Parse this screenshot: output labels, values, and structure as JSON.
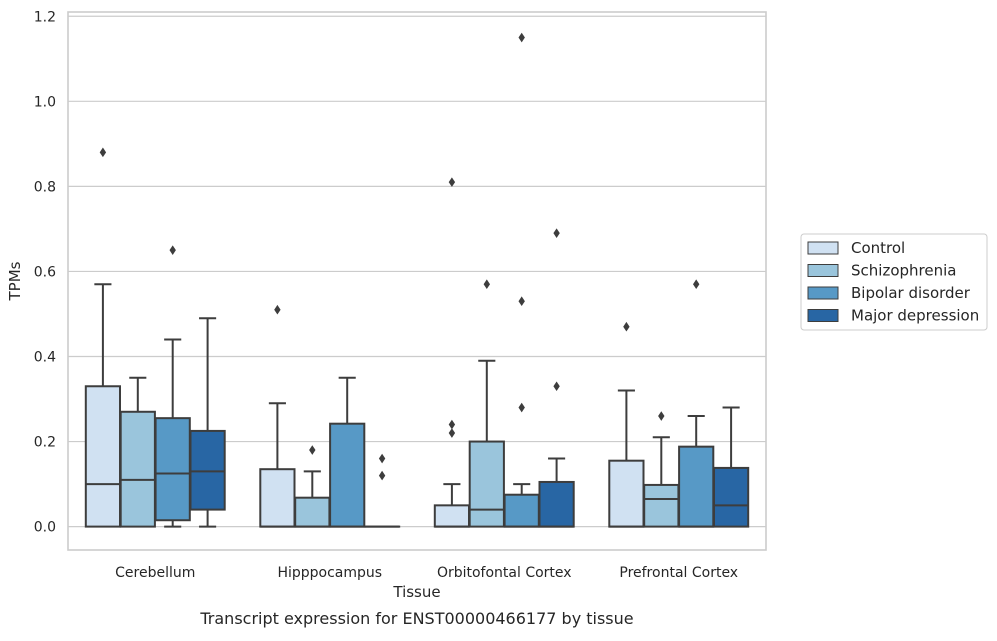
{
  "chart_data": {
    "type": "box",
    "xlabel": "Tissue",
    "ylabel": "TPMs",
    "caption": "Transcript expression for ENST00000466177 by tissue",
    "ylim": [
      -0.055,
      1.21
    ],
    "yticks": [
      0.0,
      0.2,
      0.4,
      0.6,
      0.8,
      1.0,
      1.2
    ],
    "ytick_labels": [
      "0.0",
      "0.2",
      "0.4",
      "0.6",
      "0.8",
      "1.0",
      "1.2"
    ],
    "grid": "horizontal",
    "legend_position": "right",
    "categories": [
      "Cerebellum",
      "Hipppocampus",
      "Orbitofontal Cortex",
      "Prefrontal Cortex"
    ],
    "series": [
      {
        "name": "Control",
        "color": "#d0e1f2",
        "boxes": [
          {
            "whislo": 0.0,
            "q1": 0.0,
            "med": 0.1,
            "q3": 0.33,
            "whishi": 0.57,
            "fliers": [
              0.88
            ]
          },
          {
            "whislo": 0.0,
            "q1": 0.0,
            "med": 0.0,
            "q3": 0.135,
            "whishi": 0.29,
            "fliers": [
              0.51
            ]
          },
          {
            "whislo": 0.0,
            "q1": 0.0,
            "med": 0.0,
            "q3": 0.05,
            "whishi": 0.1,
            "fliers": [
              0.22,
              0.24,
              0.81
            ]
          },
          {
            "whislo": 0.0,
            "q1": 0.0,
            "med": 0.0,
            "q3": 0.155,
            "whishi": 0.32,
            "fliers": [
              0.47
            ]
          }
        ]
      },
      {
        "name": "Schizophrenia",
        "color": "#9ac5dc",
        "boxes": [
          {
            "whislo": 0.0,
            "q1": 0.0,
            "med": 0.11,
            "q3": 0.27,
            "whishi": 0.35,
            "fliers": []
          },
          {
            "whislo": 0.0,
            "q1": 0.0,
            "med": 0.0,
            "q3": 0.068,
            "whishi": 0.13,
            "fliers": [
              0.18
            ]
          },
          {
            "whislo": 0.0,
            "q1": 0.0,
            "med": 0.04,
            "q3": 0.2,
            "whishi": 0.39,
            "fliers": [
              0.57
            ]
          },
          {
            "whislo": 0.0,
            "q1": 0.0,
            "med": 0.065,
            "q3": 0.098,
            "whishi": 0.21,
            "fliers": [
              0.26
            ]
          }
        ]
      },
      {
        "name": "Bipolar disorder",
        "color": "#5799c6",
        "boxes": [
          {
            "whislo": 0.0,
            "q1": 0.015,
            "med": 0.125,
            "q3": 0.255,
            "whishi": 0.44,
            "fliers": [
              0.65
            ]
          },
          {
            "whislo": 0.0,
            "q1": 0.0,
            "med": 0.0,
            "q3": 0.242,
            "whishi": 0.35,
            "fliers": []
          },
          {
            "whislo": 0.0,
            "q1": 0.0,
            "med": 0.0,
            "q3": 0.075,
            "whishi": 0.1,
            "fliers": [
              0.28,
              0.53,
              1.15
            ]
          },
          {
            "whislo": 0.0,
            "q1": 0.0,
            "med": 0.0,
            "q3": 0.188,
            "whishi": 0.26,
            "fliers": [
              0.57
            ]
          }
        ]
      },
      {
        "name": "Major depression",
        "color": "#2866a4",
        "boxes": [
          {
            "whislo": 0.0,
            "q1": 0.04,
            "med": 0.13,
            "q3": 0.225,
            "whishi": 0.49,
            "fliers": []
          },
          {
            "whislo": 0.0,
            "q1": 0.0,
            "med": 0.0,
            "q3": 0.0,
            "whishi": 0.0,
            "fliers": [
              0.12,
              0.16
            ]
          },
          {
            "whislo": 0.0,
            "q1": 0.0,
            "med": 0.0,
            "q3": 0.105,
            "whishi": 0.16,
            "fliers": [
              0.33,
              0.69
            ]
          },
          {
            "whislo": 0.0,
            "q1": 0.0,
            "med": 0.05,
            "q3": 0.138,
            "whishi": 0.28,
            "fliers": []
          }
        ]
      }
    ]
  }
}
